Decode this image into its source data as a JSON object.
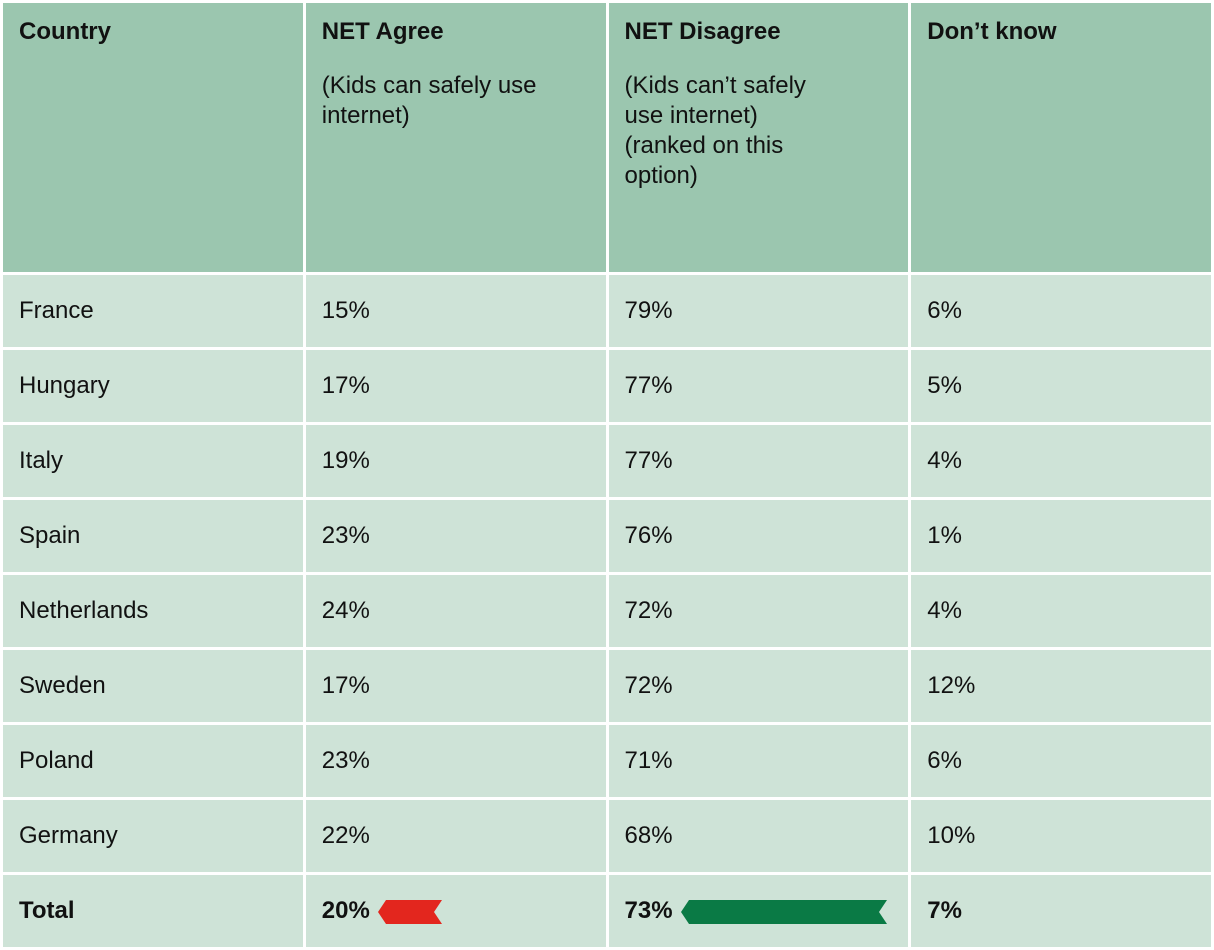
{
  "header": {
    "columns": [
      {
        "title": "Country"
      },
      {
        "title": "NET Agree",
        "notes": [
          "(Kids can safely use internet)"
        ]
      },
      {
        "title": "NET Disagree",
        "notes": [
          "(Kids can’t safely use internet)",
          "(ranked on this option)"
        ]
      },
      {
        "title": "Don’t know"
      }
    ]
  },
  "table": {
    "rows": [
      [
        "France",
        "15%",
        "79%",
        "6%"
      ],
      [
        "Hungary",
        "17%",
        "77%",
        "5%"
      ],
      [
        "Italy",
        "19%",
        "77%",
        "4%"
      ],
      [
        "Spain",
        "23%",
        "76%",
        "1%"
      ],
      [
        "Netherlands",
        "24%",
        "72%",
        "4%"
      ],
      [
        "Sweden",
        "17%",
        "72%",
        "12%"
      ],
      [
        "Poland",
        "23%",
        "71%",
        "6%"
      ],
      [
        "Germany",
        "22%",
        "68%",
        "10%"
      ]
    ]
  },
  "total": [
    "Total",
    "20%",
    "73%",
    "7%"
  ]
}
